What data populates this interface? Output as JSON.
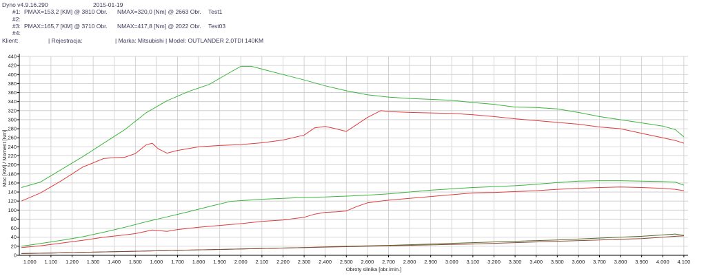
{
  "header": {
    "app_version": "Dyno v4.9.16.290",
    "date": "2015-01-19",
    "runs": [
      {
        "label": "#1:",
        "pmax": "PMAX=153,2 [KM] @ 3810 Obr.",
        "nmax": "NMAX=320,0 [Nm] @ 2663 Obr.",
        "test": "Test1"
      },
      {
        "label": "#2:",
        "pmax": "",
        "nmax": "",
        "test": ""
      },
      {
        "label": "#3:",
        "pmax": "PMAX=165,7 [KM] @ 3710 Obr.",
        "nmax": "NMAX=417,8 [Nm] @ 2022 Obr.",
        "test": "Test03"
      },
      {
        "label": "#4:",
        "pmax": "",
        "nmax": "",
        "test": ""
      }
    ],
    "client_label": "Klient:",
    "registration_label": "| Rejestracja:",
    "make_model": "| Marka: Mitsubishi | Model: OUTLANDER 2,0TDI 140KM"
  },
  "colors": {
    "test1": "#e03c3c",
    "test03": "#3cb43c",
    "boost_test1": "#8a4a3a",
    "boost_test03": "#5a6a2a",
    "grid": "#c8c8c8",
    "axis": "#000000"
  },
  "chart_data": {
    "type": "line",
    "xlabel": "Obroty silnika [obr./min.]",
    "ylabel": "Moc [KM] / Moment [Nm]",
    "xlim": [
      950,
      4120
    ],
    "ylim": [
      0,
      440
    ],
    "x_ticks": [
      1000,
      1100,
      1200,
      1300,
      1400,
      1500,
      1600,
      1700,
      1800,
      1900,
      2000,
      2100,
      2200,
      2300,
      2400,
      2500,
      2600,
      2700,
      2800,
      2900,
      3000,
      3100,
      3200,
      3300,
      3400,
      3500,
      3600,
      3700,
      3800,
      3900,
      4000,
      4100
    ],
    "x_tick_labels": [
      "1.000",
      "1.100",
      "1.200",
      "1.300",
      "1.400",
      "1.500",
      "1.600",
      "1.700",
      "1.800",
      "1.900",
      "2.000",
      "2.100",
      "2.200",
      "2.300",
      "2.400",
      "2.500",
      "2.600",
      "2.700",
      "2.800",
      "2.900",
      "3.000",
      "3.100",
      "3.200",
      "3.300",
      "3.400",
      "3.500",
      "3.600",
      "3.700",
      "3.800",
      "3.900",
      "4.000",
      "4.100"
    ],
    "y_ticks": [
      0,
      20,
      40,
      60,
      80,
      100,
      120,
      140,
      160,
      180,
      200,
      220,
      240,
      260,
      280,
      300,
      320,
      340,
      360,
      380,
      400,
      420,
      440
    ],
    "y_tick_labels": [
      "0",
      "20",
      "40",
      "60",
      "80",
      "100",
      "120",
      "140",
      "160",
      "180",
      "200",
      "220",
      "240",
      "260",
      "280",
      "300",
      "320",
      "340",
      "360",
      "380",
      "400",
      "420",
      "440"
    ],
    "grid": true,
    "series": [
      {
        "color_key": "test03",
        "x": [
          960,
          1050,
          1150,
          1250,
          1350,
          1450,
          1550,
          1650,
          1750,
          1850,
          1950,
          2000,
          2050,
          2100,
          2200,
          2300,
          2400,
          2500,
          2600,
          2700,
          2800,
          2900,
          3000,
          3100,
          3200,
          3300,
          3400,
          3500,
          3600,
          3700,
          3800,
          3900,
          4000,
          4060,
          4100
        ],
        "values": [
          150,
          162,
          190,
          218,
          248,
          278,
          315,
          342,
          362,
          378,
          405,
          418,
          418,
          412,
          400,
          388,
          375,
          364,
          355,
          350,
          347,
          345,
          343,
          338,
          334,
          328,
          327,
          324,
          316,
          307,
          300,
          293,
          286,
          278,
          262
        ]
      },
      {
        "color_key": "test1",
        "x": [
          960,
          1050,
          1150,
          1250,
          1350,
          1400,
          1450,
          1500,
          1550,
          1580,
          1610,
          1650,
          1700,
          1800,
          1900,
          2000,
          2100,
          2200,
          2300,
          2350,
          2400,
          2450,
          2500,
          2600,
          2663,
          2700,
          2800,
          2900,
          3000,
          3100,
          3200,
          3300,
          3400,
          3500,
          3600,
          3700,
          3800,
          3900,
          4000,
          4060,
          4100
        ],
        "values": [
          120,
          138,
          165,
          195,
          214,
          216,
          217,
          225,
          244,
          248,
          235,
          226,
          232,
          240,
          243,
          245,
          249,
          255,
          266,
          282,
          285,
          280,
          274,
          305,
          320,
          318,
          316,
          315,
          314,
          311,
          307,
          302,
          298,
          294,
          290,
          284,
          280,
          270,
          260,
          254,
          248
        ]
      },
      {
        "color_key": "test03",
        "x": [
          960,
          1050,
          1150,
          1250,
          1350,
          1450,
          1550,
          1650,
          1750,
          1850,
          1950,
          2000,
          2100,
          2200,
          2300,
          2400,
          2500,
          2600,
          2700,
          2800,
          2900,
          3000,
          3100,
          3200,
          3300,
          3400,
          3500,
          3600,
          3700,
          3800,
          3900,
          4000,
          4060,
          4100
        ],
        "values": [
          20,
          26,
          33,
          41,
          51,
          62,
          74,
          85,
          96,
          108,
          119,
          121,
          124,
          126,
          128,
          129,
          131,
          133,
          136,
          140,
          144,
          147,
          150,
          152,
          154,
          157,
          161,
          164,
          165,
          165,
          164,
          163,
          162,
          155
        ]
      },
      {
        "color_key": "test1",
        "x": [
          960,
          1050,
          1150,
          1250,
          1350,
          1450,
          1500,
          1550,
          1580,
          1650,
          1700,
          1800,
          1900,
          2000,
          2100,
          2200,
          2300,
          2350,
          2400,
          2450,
          2500,
          2550,
          2600,
          2663,
          2700,
          2800,
          2900,
          3000,
          3100,
          3200,
          3300,
          3400,
          3500,
          3600,
          3700,
          3800,
          3900,
          4000,
          4060,
          4100
        ],
        "values": [
          17,
          21,
          27,
          33,
          40,
          45,
          48,
          53,
          56,
          53,
          57,
          62,
          66,
          70,
          75,
          78,
          84,
          91,
          95,
          96,
          98,
          108,
          116,
          120,
          122,
          126,
          130,
          134,
          138,
          139,
          141,
          143,
          146,
          148,
          150,
          151,
          150,
          148,
          146,
          143
        ]
      },
      {
        "color_key": "boost_test03",
        "x": [
          960,
          1100,
          1300,
          1500,
          1700,
          1900,
          2100,
          2300,
          2500,
          2700,
          2900,
          3100,
          3300,
          3500,
          3700,
          3900,
          4000,
          4060,
          4100
        ],
        "values": [
          4,
          5,
          7,
          9,
          11,
          13,
          15,
          17,
          20,
          22,
          25,
          28,
          31,
          34,
          38,
          42,
          45,
          47,
          44
        ]
      },
      {
        "color_key": "boost_test1",
        "x": [
          960,
          1100,
          1300,
          1500,
          1700,
          1900,
          2100,
          2300,
          2500,
          2700,
          2900,
          3100,
          3300,
          3500,
          3700,
          3900,
          4000,
          4060,
          4100
        ],
        "values": [
          4,
          5,
          7,
          9,
          11,
          13,
          15,
          17,
          19,
          21,
          23,
          25,
          28,
          31,
          34,
          37,
          40,
          42,
          43
        ]
      }
    ]
  }
}
